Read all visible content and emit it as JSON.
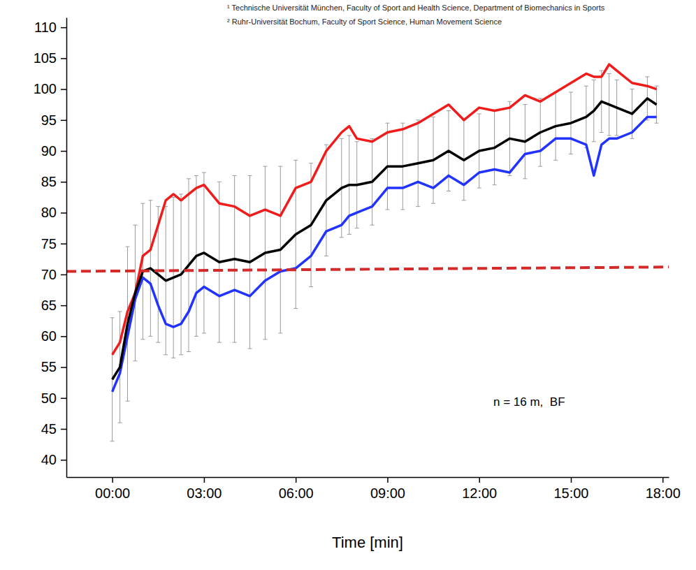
{
  "chart_data": {
    "type": "line",
    "header_notes": [
      "¹ Technische Universität München, Faculty of Sport and Health Science, Department of Biomechanics in Sports",
      "² Ruhr-Universität Bochum, Faculty of Sport Science, Human Movement Science"
    ],
    "x_label": "Time [min]",
    "annotations": [
      "n = 16 m,  BF"
    ],
    "x": [
      0,
      0.25,
      0.5,
      0.75,
      1,
      1.25,
      1.5,
      1.75,
      2,
      2.25,
      2.5,
      2.75,
      3,
      3.5,
      4,
      4.5,
      5,
      5.5,
      6,
      6.5,
      7,
      7.5,
      7.75,
      8,
      8.5,
      9,
      9.5,
      10,
      10.5,
      11,
      11.5,
      12,
      12.5,
      13,
      13.5,
      14,
      14.5,
      15,
      15.5,
      15.75,
      16,
      16.25,
      16.5,
      17,
      17.5,
      17.8
    ],
    "series": [
      {
        "color": "#f01c1c",
        "line_style": "solid",
        "values": [
          57,
          59,
          64,
          67,
          73,
          74,
          78,
          82,
          83,
          82,
          83,
          84,
          84.5,
          81.5,
          81,
          79.5,
          80.5,
          79.5,
          84,
          85,
          90,
          93,
          94,
          92,
          91.5,
          93,
          93.5,
          94.5,
          96,
          97.5,
          95,
          97,
          96.5,
          97,
          99,
          98,
          99.5,
          101,
          102.5,
          102,
          102,
          104,
          103,
          101,
          100.5,
          100
        ]
      },
      {
        "color": "#2233ff",
        "line_style": "solid",
        "values": [
          51,
          54,
          60,
          66,
          69.5,
          68.5,
          65,
          62,
          61.5,
          62,
          64,
          67,
          68,
          66.5,
          67.5,
          66.5,
          69,
          70.5,
          71,
          73,
          77,
          78,
          79.5,
          80,
          81,
          84,
          84,
          85,
          84,
          86,
          84.5,
          86.5,
          87,
          86.5,
          89.5,
          90,
          92,
          92,
          91,
          86,
          91,
          92,
          92,
          93,
          95.5,
          95.5
        ]
      },
      {
        "color": "#000000",
        "line_style": "solid",
        "values": [
          53,
          55,
          62,
          67,
          70.5,
          71,
          70,
          69,
          69.5,
          70,
          71.5,
          73,
          73.5,
          72,
          72.5,
          72,
          73.5,
          74,
          76.5,
          78,
          82,
          84,
          84.5,
          84.5,
          85,
          87.5,
          87.5,
          88,
          88.5,
          90,
          88.5,
          90,
          90.5,
          92,
          91.5,
          93,
          94,
          94.5,
          95.5,
          96.5,
          98,
          97.5,
          97,
          96,
          98.5,
          97.5
        ],
        "error": [
          10,
          9,
          12.5,
          11,
          11,
          11,
          11,
          12,
          13,
          13,
          14,
          13,
          13,
          13,
          13.5,
          14,
          14,
          13.5,
          12,
          10,
          9,
          8,
          8,
          7,
          7,
          7,
          7,
          7,
          7,
          6.5,
          6.5,
          6,
          6,
          6,
          6,
          5.5,
          5.5,
          5,
          5,
          5,
          5,
          5,
          4.5,
          4,
          3.5,
          3
        ]
      }
    ],
    "reference_line": {
      "x": [
        -1.5,
        18.2
      ],
      "values": [
        70.5,
        71.2
      ],
      "color": "#d42a2a",
      "line_style": "dashed"
    },
    "xlim": [
      -1.5,
      18.2
    ],
    "ylim": [
      37.2,
      111.6
    ],
    "xticks": [
      {
        "value": 0,
        "label": "00:00"
      },
      {
        "value": 3,
        "label": "03:00"
      },
      {
        "value": 6,
        "label": "06:00"
      },
      {
        "value": 9,
        "label": "09:00"
      },
      {
        "value": 12,
        "label": "12:00"
      },
      {
        "value": 15,
        "label": "15:00"
      },
      {
        "value": 18,
        "label": "18:00"
      }
    ],
    "yticks": [
      40,
      45,
      50,
      55,
      60,
      65,
      70,
      75,
      80,
      85,
      90,
      95,
      100,
      105,
      110
    ],
    "grid": false
  }
}
